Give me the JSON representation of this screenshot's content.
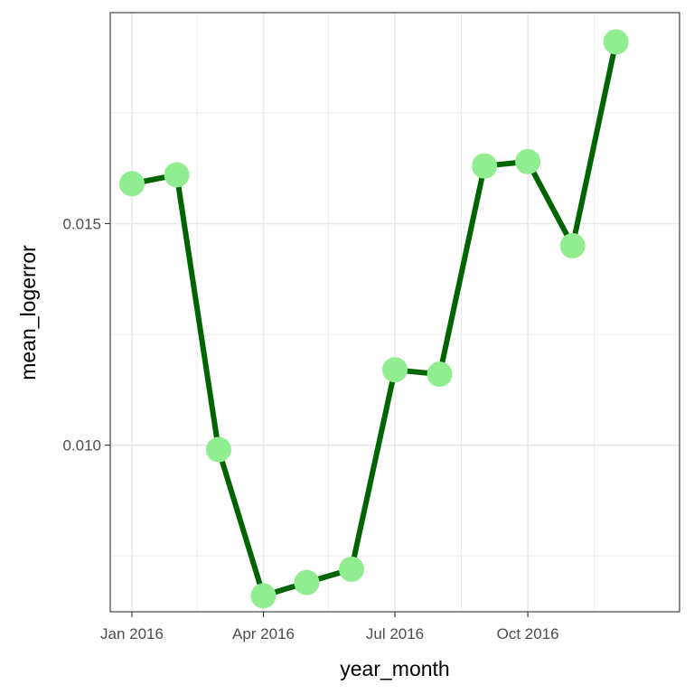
{
  "chart_data": {
    "type": "line",
    "title": "",
    "xlabel": "year_month",
    "ylabel": "mean_logerror",
    "x": [
      "2016-01",
      "2016-02",
      "2016-03",
      "2016-04",
      "2016-05",
      "2016-06",
      "2016-07",
      "2016-08",
      "2016-09",
      "2016-10",
      "2016-11",
      "2016-12"
    ],
    "series": [
      {
        "values": [
          0.0159,
          0.0161,
          0.0099,
          0.0066,
          0.0069,
          0.0072,
          0.0117,
          0.0116,
          0.0163,
          0.0164,
          0.0145,
          0.0191
        ]
      }
    ],
    "x_ticks": [
      {
        "x": "2016-01",
        "label": "Jan 2016"
      },
      {
        "x": "2016-04",
        "label": "Apr 2016"
      },
      {
        "x": "2016-07",
        "label": "Jul 2016"
      },
      {
        "x": "2016-10",
        "label": "Oct 2016"
      }
    ],
    "y_ticks": [
      {
        "value": 0.01,
        "label": "0.010"
      },
      {
        "value": 0.015,
        "label": "0.015"
      }
    ],
    "y_minor_ticks": [
      0.0075,
      0.0125,
      0.0175
    ],
    "x_minor_ticks": [
      "2016-02-15",
      "2016-05-16",
      "2016-08-16",
      "2016-11-16"
    ],
    "xlim": [
      "2015-12-17",
      "2017-01-14"
    ],
    "ylim": [
      0.00624,
      0.01976
    ],
    "grid": true,
    "colors": {
      "line": "#006400",
      "point": "#90ee90",
      "grid": "#ebebeb",
      "border": "#333333"
    }
  }
}
